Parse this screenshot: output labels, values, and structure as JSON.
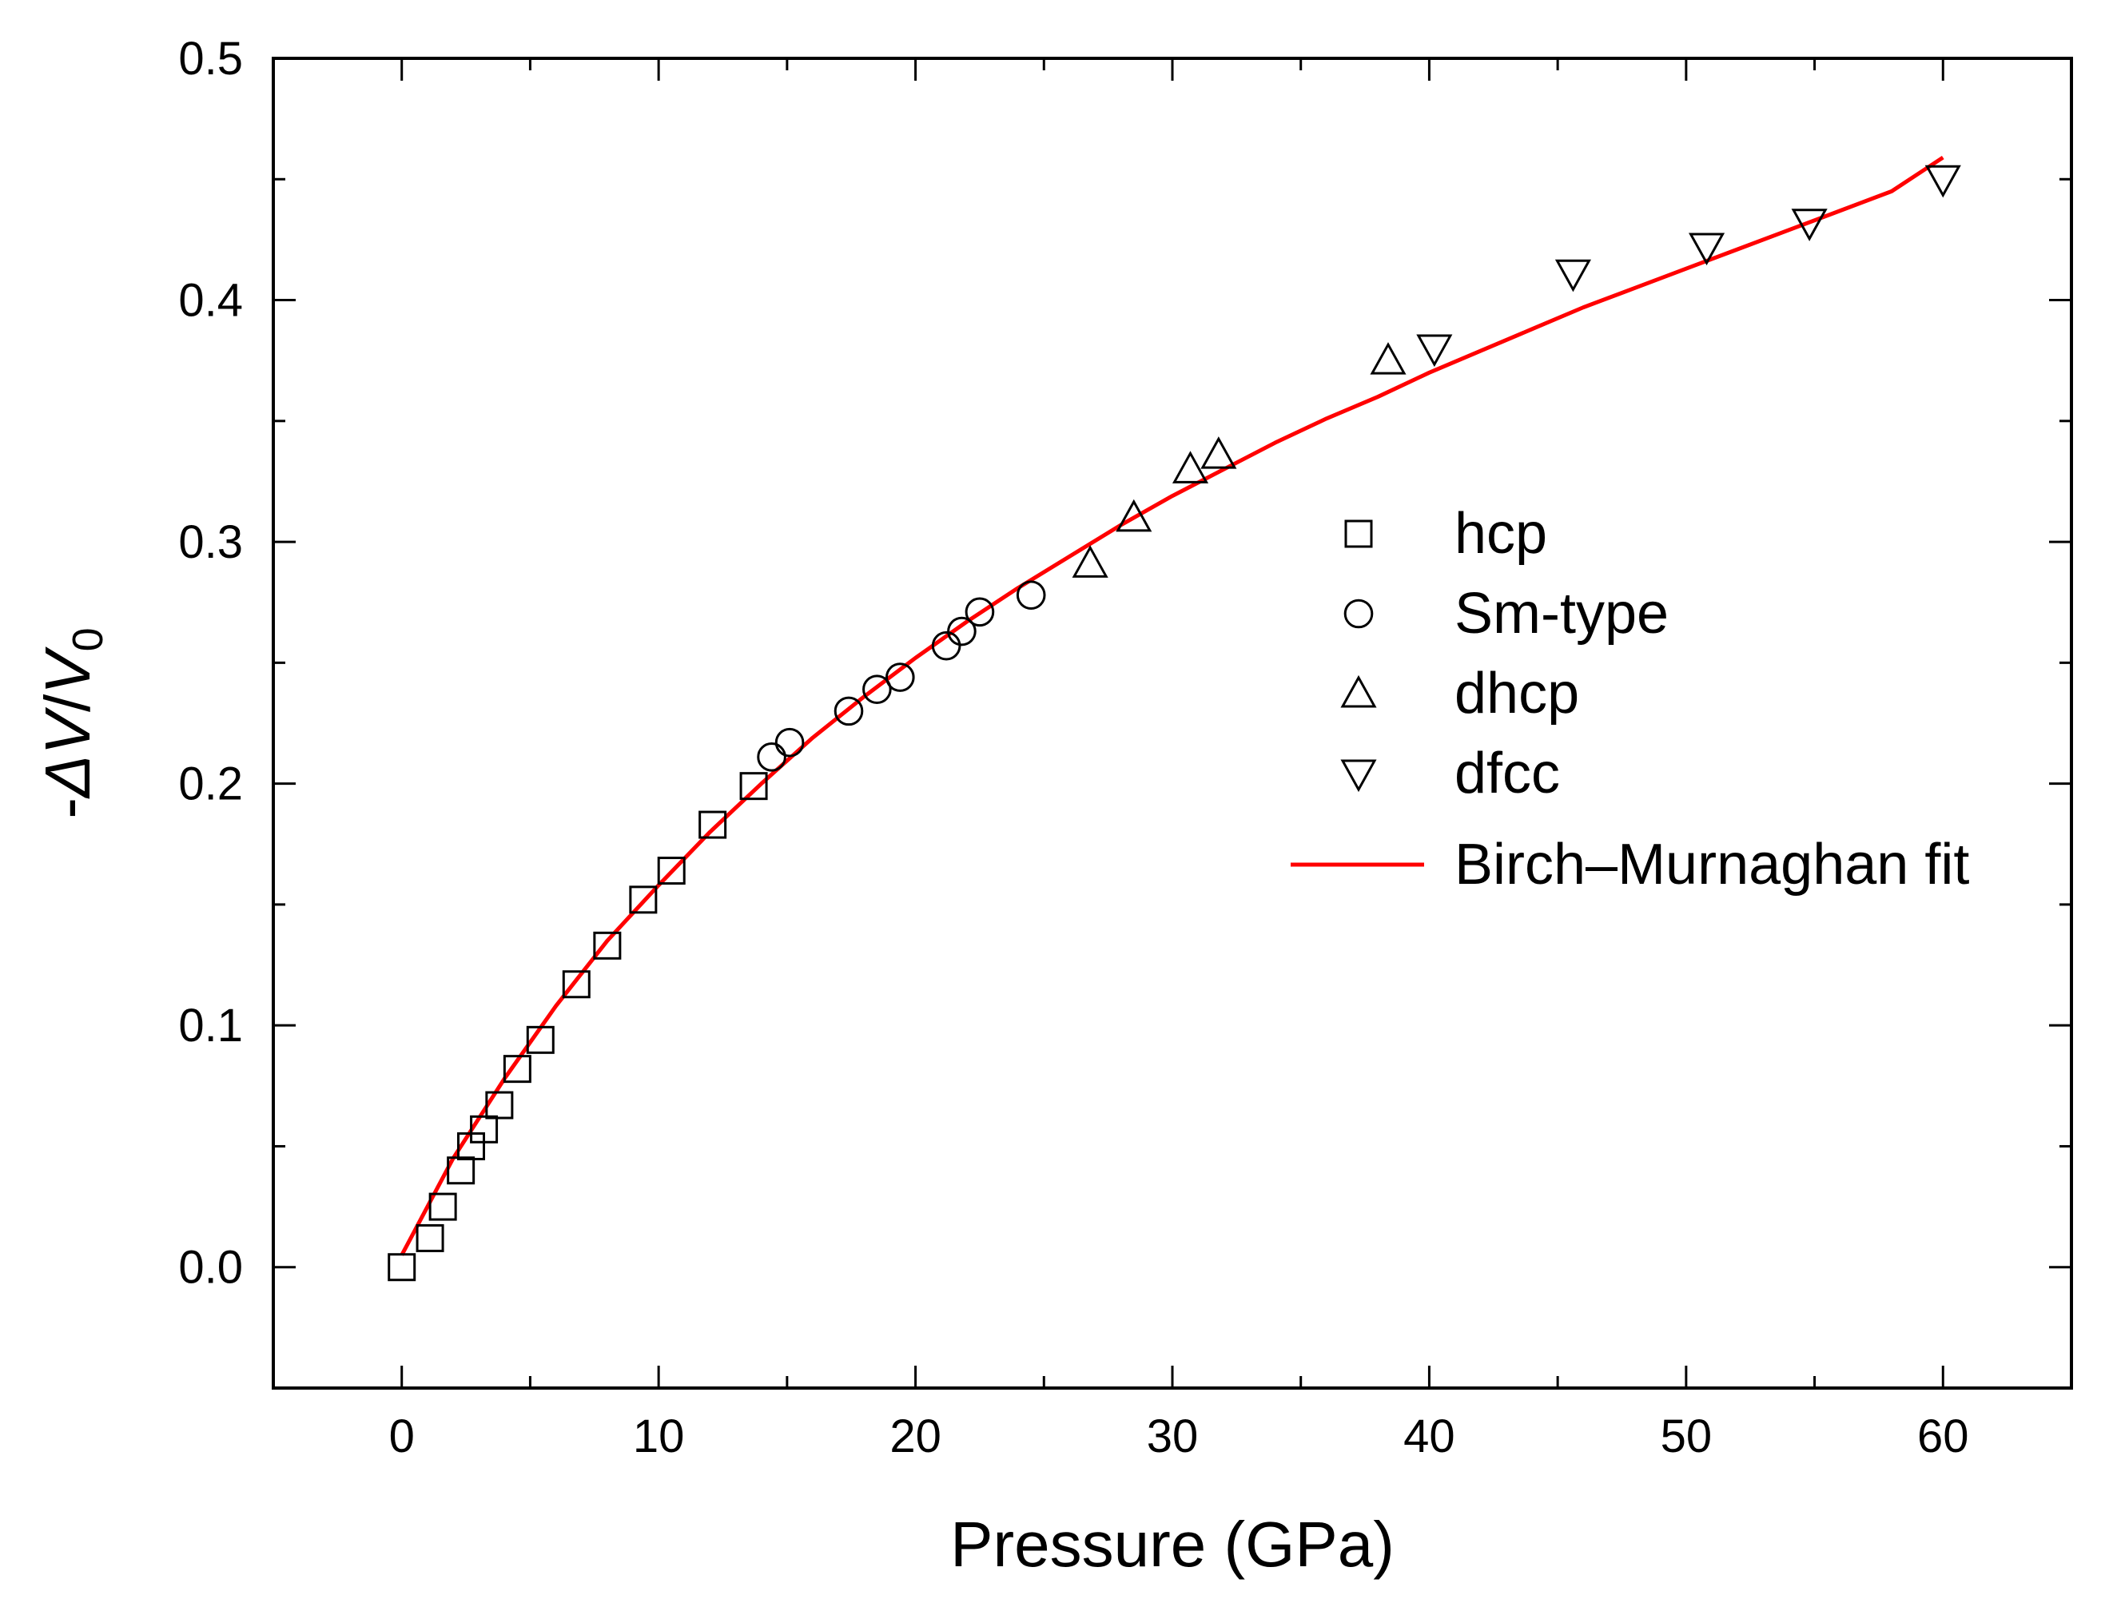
{
  "chart_data": {
    "type": "scatter",
    "xlabel": "Pressure (GPa)",
    "ylabel": {
      "prefix": "-",
      "delta": "Δ",
      "V": "V",
      "slash": "/",
      "V0": "V",
      "sub": "0"
    },
    "xlim": [
      -5,
      65
    ],
    "ylim": [
      -0.05,
      0.5
    ],
    "xticks": [
      0,
      10,
      20,
      30,
      40,
      50,
      60
    ],
    "xtick_labels": [
      "0",
      "10",
      "20",
      "30",
      "40",
      "50",
      "60"
    ],
    "yticks": [
      0.0,
      0.1,
      0.2,
      0.3,
      0.4,
      0.5
    ],
    "ytick_labels": [
      "0.0",
      "0.1",
      "0.2",
      "0.3",
      "0.4",
      "0.5"
    ],
    "legend_position": "right-center",
    "series": [
      {
        "name": "hcp",
        "marker": "square",
        "color": "#000000",
        "x": [
          0,
          1.1,
          1.6,
          2.3,
          2.7,
          3.2,
          3.8,
          4.5,
          5.4,
          6.8,
          8.0,
          9.4,
          10.5,
          12.1,
          13.7
        ],
        "y": [
          0.0,
          0.012,
          0.025,
          0.04,
          0.05,
          0.057,
          0.067,
          0.082,
          0.094,
          0.117,
          0.133,
          0.152,
          0.164,
          0.183,
          0.199
        ]
      },
      {
        "name": "Sm-type",
        "marker": "circle",
        "color": "#000000",
        "x": [
          14.4,
          15.1,
          17.4,
          18.5,
          19.4,
          21.2,
          21.8,
          22.5,
          24.5
        ],
        "y": [
          0.211,
          0.217,
          0.23,
          0.239,
          0.244,
          0.257,
          0.263,
          0.271,
          0.278
        ]
      },
      {
        "name": "dhcp",
        "marker": "triangle-up",
        "color": "#000000",
        "x": [
          26.8,
          28.5,
          30.7,
          31.8,
          38.4
        ],
        "y": [
          0.291,
          0.31,
          0.33,
          0.336,
          0.375
        ]
      },
      {
        "name": "dfcc",
        "marker": "triangle-down",
        "color": "#000000",
        "x": [
          40.2,
          45.6,
          50.8,
          54.8,
          60.0
        ],
        "y": [
          0.38,
          0.411,
          0.422,
          0.432,
          0.45
        ]
      },
      {
        "name": "Birch–Murnaghan fit",
        "marker": "line",
        "color": "#ff0000",
        "x": [
          0,
          2,
          4,
          6,
          8,
          10,
          12,
          14,
          16,
          18,
          20,
          22,
          24,
          26,
          28,
          30,
          32,
          34,
          36,
          38,
          40,
          42,
          44,
          46,
          48,
          50,
          52,
          54,
          56,
          58,
          60
        ],
        "y": [
          0.005,
          0.045,
          0.078,
          0.108,
          0.135,
          0.158,
          0.18,
          0.2,
          0.219,
          0.236,
          0.252,
          0.267,
          0.281,
          0.294,
          0.307,
          0.319,
          0.33,
          0.341,
          0.351,
          0.36,
          0.37,
          0.379,
          0.388,
          0.397,
          0.405,
          0.413,
          0.421,
          0.429,
          0.437,
          0.445,
          0.459
        ]
      }
    ]
  }
}
